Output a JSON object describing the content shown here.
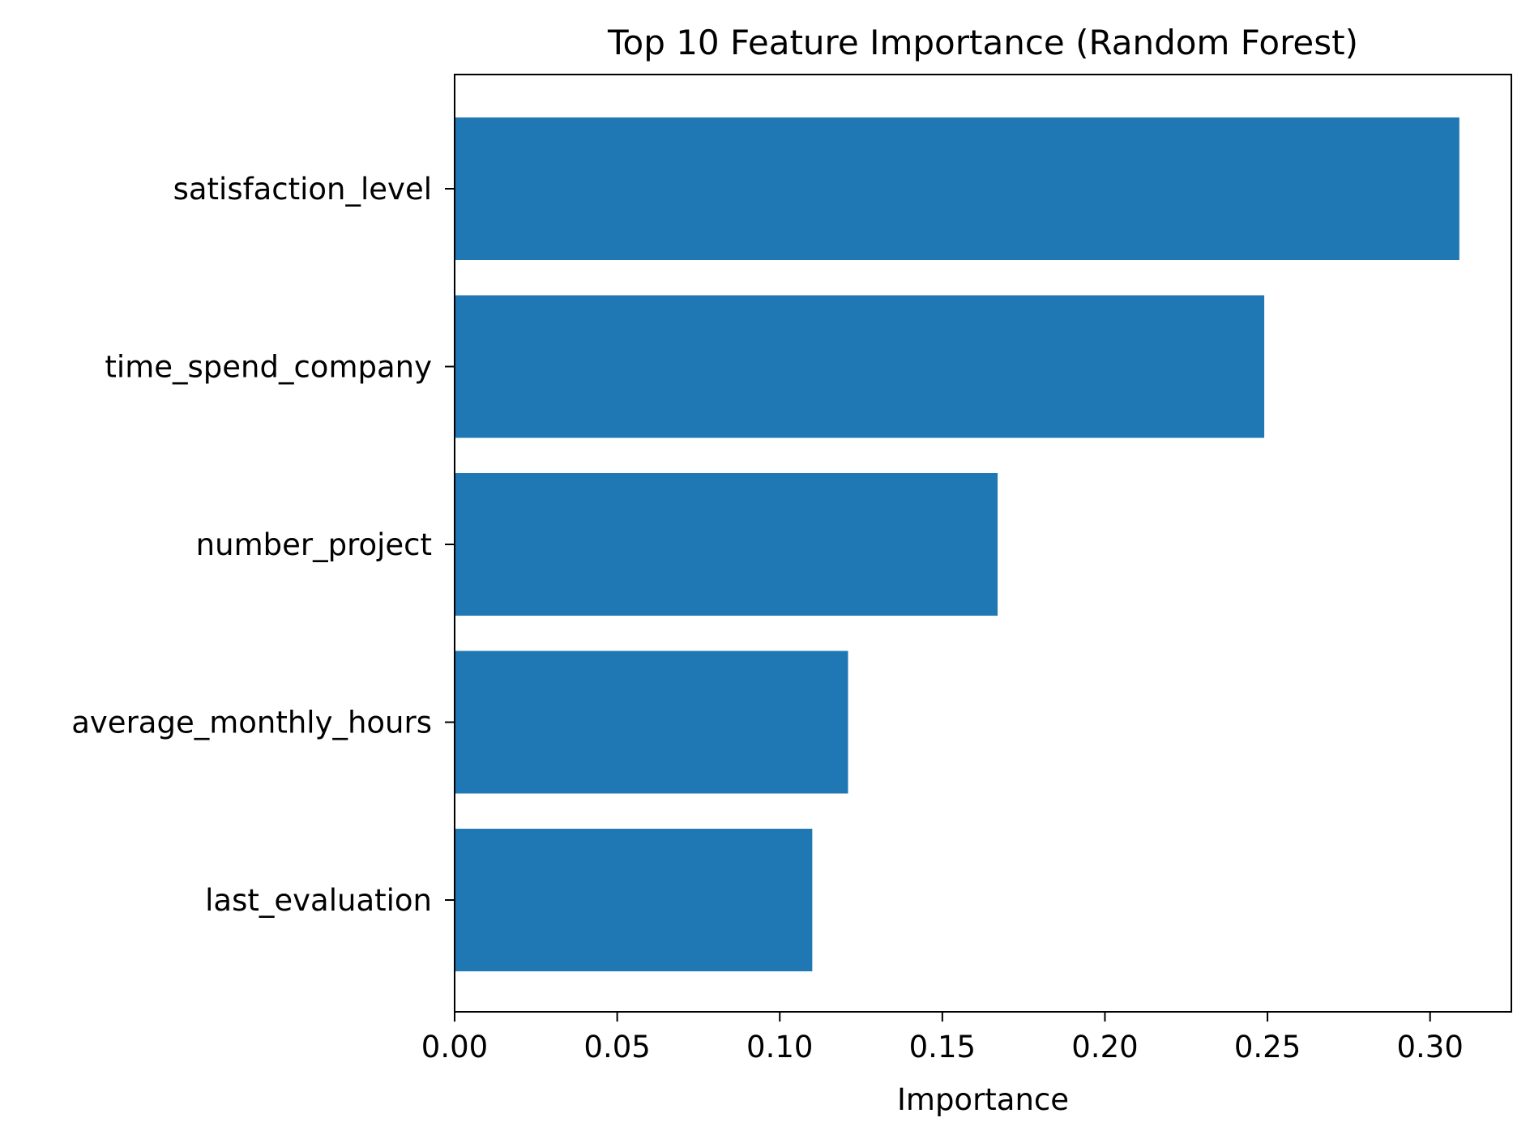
{
  "chart_data": {
    "type": "bar",
    "orientation": "horizontal",
    "title": "Top 10 Feature Importance (Random Forest)",
    "xlabel": "Importance",
    "ylabel": "",
    "categories": [
      "satisfaction_level",
      "time_spend_company",
      "number_project",
      "average_monthly_hours",
      "last_evaluation"
    ],
    "values": [
      0.309,
      0.249,
      0.167,
      0.121,
      0.11
    ],
    "xlim": [
      0,
      0.325
    ],
    "xticks": [
      0.0,
      0.05,
      0.1,
      0.15,
      0.2,
      0.25,
      0.3
    ],
    "xtick_labels": [
      "0.00",
      "0.05",
      "0.10",
      "0.15",
      "0.20",
      "0.25",
      "0.30"
    ],
    "bar_color": "#1f77b4",
    "grid": false,
    "legend": "none"
  }
}
